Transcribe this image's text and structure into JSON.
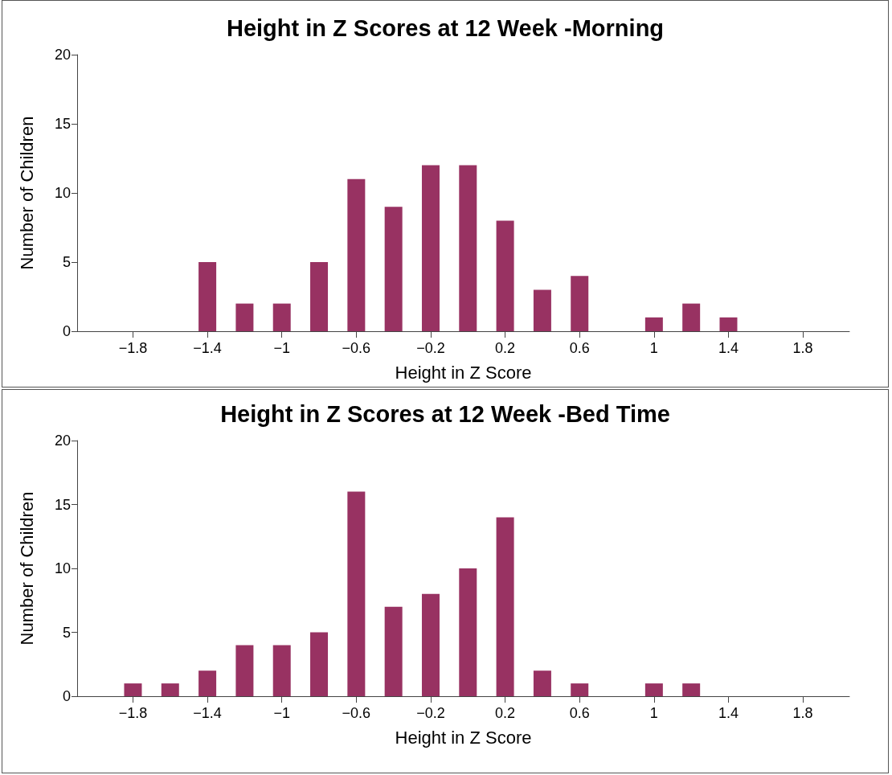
{
  "chart_data": [
    {
      "type": "bar",
      "title": "Height in Z Scores at 12 Week -Morning",
      "xlabel": "Height in Z Score",
      "ylabel": "Number of Children",
      "x": [
        -1.4,
        -1.2,
        -1.0,
        -0.8,
        -0.6,
        -0.4,
        -0.2,
        0,
        0.2,
        0.4,
        0.6,
        1.0,
        1.2,
        1.4
      ],
      "values": [
        5,
        2,
        2,
        5,
        11,
        9,
        12,
        12,
        8,
        3,
        4,
        1,
        2,
        1
      ],
      "color": "#983262",
      "xlim": [
        -2.1,
        2.05
      ],
      "xticks": [
        {
          "value": -1.8,
          "label": "−1.8"
        },
        {
          "value": -1.4,
          "label": "−1.4"
        },
        {
          "value": -1,
          "label": "−1"
        },
        {
          "value": -0.6,
          "label": "−0.6"
        },
        {
          "value": -0.2,
          "label": "−0.2"
        },
        0.2,
        0.6,
        1,
        1.4,
        1.8
      ],
      "ylim": [
        0,
        20
      ],
      "yticks": [
        0,
        5,
        10,
        15,
        20
      ],
      "grid": false
    },
    {
      "type": "bar",
      "title": "Height in Z Scores at 12 Week -Bed Time",
      "xlabel": "Height in Z Score",
      "ylabel": "Number of Children",
      "x": [
        -1.8,
        -1.6,
        -1.4,
        -1.2,
        -1.0,
        -0.8,
        -0.6,
        -0.4,
        -0.2,
        0,
        0.2,
        0.4,
        0.6,
        1.0,
        1.2
      ],
      "values": [
        1,
        1,
        2,
        4,
        4,
        5,
        16,
        7,
        8,
        10,
        14,
        2,
        1,
        1,
        1
      ],
      "color": "#983262",
      "xlim": [
        -2.1,
        2.05
      ],
      "xticks": [
        {
          "value": -1.8,
          "label": "−1.8"
        },
        {
          "value": -1.4,
          "label": "−1.4"
        },
        {
          "value": -1,
          "label": "−1"
        },
        {
          "value": -0.6,
          "label": "−0.6"
        },
        {
          "value": -0.2,
          "label": "−0.2"
        },
        0.2,
        0.6,
        1,
        1.4,
        1.8
      ],
      "ylim": [
        0,
        20
      ],
      "yticks": [
        0,
        5,
        10,
        15,
        20
      ],
      "grid": false
    }
  ]
}
